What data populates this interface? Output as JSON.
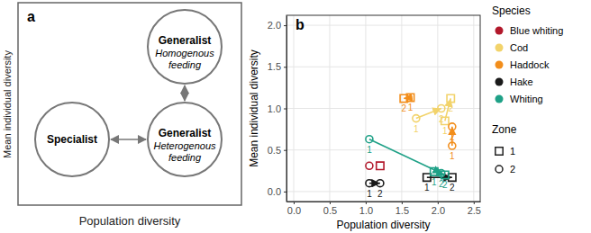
{
  "diagram": {
    "panel_label": "a",
    "x_label": "Population diversity",
    "y_label": "Mean individual diversity",
    "nodes": [
      {
        "title": "Specialist"
      },
      {
        "title": "Generalist",
        "subtitle": "Homogenous feeding"
      },
      {
        "title": "Generalist",
        "subtitle": "Heterogenous feeding"
      }
    ]
  },
  "chart_data": {
    "type": "scatter",
    "panel_label": "b",
    "x_label": "Population diversity",
    "y_label": "Mean individual diversity",
    "xlim": [
      -0.1,
      2.59
    ],
    "ylim": [
      -0.12,
      2.12
    ],
    "xticks": [
      {
        "value": 0,
        "label": "0.0"
      },
      0.5,
      {
        "value": 1,
        "label": "1.0"
      },
      1.5,
      {
        "value": 2,
        "label": "2.0"
      },
      2.5
    ],
    "yticks": [
      {
        "value": 0,
        "label": "0.0"
      },
      0.5,
      {
        "value": 1,
        "label": "1.0"
      },
      1.5,
      {
        "value": 2,
        "label": "2.0"
      }
    ],
    "grid": true,
    "legend": "right",
    "species_legend_title": "Species",
    "zone_legend_title": "Zone",
    "species": [
      {
        "name": "Blue whiting",
        "color": "#b2182b"
      },
      {
        "name": "Cod",
        "color": "#f2d36b"
      },
      {
        "name": "Haddock",
        "color": "#f28e1c"
      },
      {
        "name": "Hake",
        "color": "#1a1a1a"
      },
      {
        "name": "Whiting",
        "color": "#1fa187"
      }
    ],
    "zones": [
      {
        "name": "1",
        "marker": "square"
      },
      {
        "name": "2",
        "marker": "circle"
      }
    ],
    "series": [
      {
        "name": "Blue whiting",
        "zone": "1",
        "color": "#b2182b",
        "marker": "square",
        "x": [
          1.2
        ],
        "y": [
          0.31
        ]
      },
      {
        "name": "Blue whiting",
        "zone": "2",
        "color": "#b2182b",
        "marker": "circle",
        "x": [
          1.05
        ],
        "y": [
          0.31
        ]
      },
      {
        "name": "Cod",
        "zone": "1",
        "color": "#f2d36b",
        "marker": "square",
        "x": [
          2.1,
          2.18
        ],
        "y": [
          0.85,
          1.12
        ],
        "point_labels": [
          "1",
          "2"
        ]
      },
      {
        "name": "Cod",
        "zone": "2",
        "color": "#f2d36b",
        "marker": "circle",
        "x": [
          1.7,
          2.05
        ],
        "y": [
          0.88,
          1.0
        ],
        "point_labels": [
          "1",
          "2"
        ]
      },
      {
        "name": "Haddock",
        "zone": "1",
        "color": "#f28e1c",
        "marker": "square",
        "x": [
          1.62,
          1.53
        ],
        "y": [
          1.13,
          1.12
        ],
        "point_labels": [
          "1",
          "2"
        ]
      },
      {
        "name": "Haddock",
        "zone": "2",
        "color": "#f28e1c",
        "marker": "circle",
        "x": [
          2.2,
          2.2
        ],
        "y": [
          0.55,
          0.78
        ],
        "point_labels": [
          "1",
          "2"
        ]
      },
      {
        "name": "Hake",
        "zone": "1",
        "color": "#1a1a1a",
        "marker": "square",
        "x": [
          1.85,
          2.2
        ],
        "y": [
          0.17,
          0.17
        ],
        "point_labels": [
          "1",
          "2"
        ]
      },
      {
        "name": "Hake",
        "zone": "2",
        "color": "#1a1a1a",
        "marker": "circle",
        "x": [
          1.05,
          1.2
        ],
        "y": [
          0.1,
          0.1
        ],
        "point_labels": [
          "1",
          "2"
        ]
      },
      {
        "name": "Whiting",
        "zone": "1",
        "color": "#1fa187",
        "marker": "square",
        "x": [
          1.95,
          2.1
        ],
        "y": [
          0.24,
          0.2
        ],
        "point_labels": [
          "1",
          "2"
        ]
      },
      {
        "name": "Whiting",
        "zone": "2",
        "color": "#1fa187",
        "marker": "circle",
        "x": [
          1.05,
          2.05
        ],
        "y": [
          0.63,
          0.22
        ],
        "point_labels": [
          "1",
          "2"
        ]
      }
    ]
  }
}
